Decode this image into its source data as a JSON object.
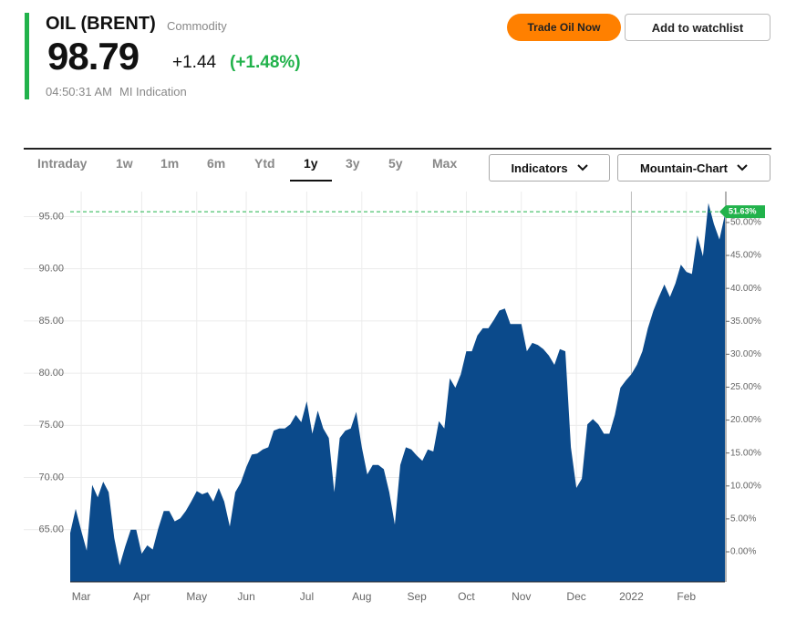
{
  "header": {
    "title": "OIL (BRENT)",
    "kind": "Commodity",
    "price": "98.79",
    "change": "+1.44",
    "change_pct": "(+1.48%)",
    "time": "04:50:31 AM",
    "indication": "MI Indication"
  },
  "buttons": {
    "trade": "Trade Oil Now",
    "watchlist": "Add to watchlist"
  },
  "tabs": [
    "Intraday",
    "1w",
    "1m",
    "6m",
    "Ytd",
    "1y",
    "3y",
    "5y",
    "Max"
  ],
  "dropdowns": [
    "Indicators",
    "Mountain-Chart"
  ],
  "chart_data": {
    "type": "area",
    "color": "#0b4a8b",
    "grid": true,
    "categories": [
      null,
      null,
      "Mar",
      null,
      null,
      null,
      null,
      null,
      null,
      null,
      null,
      null,
      null,
      "Apr",
      null,
      null,
      null,
      null,
      null,
      null,
      null,
      null,
      null,
      "May",
      null,
      null,
      null,
      null,
      null,
      null,
      null,
      null,
      "Jun",
      null,
      null,
      null,
      null,
      null,
      null,
      null,
      null,
      null,
      null,
      "Jul",
      null,
      null,
      null,
      null,
      null,
      null,
      null,
      null,
      null,
      "Aug",
      null,
      null,
      null,
      null,
      null,
      null,
      null,
      null,
      null,
      "Sep",
      null,
      null,
      null,
      null,
      null,
      null,
      null,
      null,
      "Oct",
      null,
      null,
      null,
      null,
      null,
      null,
      null,
      null,
      null,
      "Nov",
      null,
      null,
      null,
      null,
      null,
      null,
      null,
      null,
      null,
      "Dec",
      null,
      null,
      null,
      null,
      null,
      null,
      null,
      null,
      null,
      "2022",
      null,
      null,
      null,
      null,
      null,
      null,
      null,
      null,
      null,
      "Feb",
      null,
      null,
      null,
      null,
      null,
      null,
      null
    ],
    "values": [
      64.7,
      67.0,
      64.9,
      63.0,
      69.3,
      68.1,
      69.6,
      68.6,
      64.2,
      61.6,
      63.4,
      65.0,
      65.0,
      62.7,
      63.5,
      63.1,
      65.1,
      66.8,
      66.8,
      65.8,
      66.1,
      66.8,
      67.7,
      68.7,
      68.4,
      68.6,
      67.7,
      69.0,
      67.7,
      65.3,
      68.6,
      69.5,
      71.0,
      72.2,
      72.3,
      72.7,
      72.9,
      74.5,
      74.7,
      74.7,
      75.1,
      76.0,
      75.3,
      77.3,
      74.2,
      76.4,
      74.7,
      73.8,
      68.6,
      73.8,
      74.5,
      74.7,
      76.3,
      72.9,
      70.3,
      71.2,
      71.2,
      70.8,
      68.6,
      65.5,
      71.2,
      72.9,
      72.7,
      72.1,
      71.6,
      72.7,
      72.5,
      75.4,
      74.7,
      79.5,
      78.6,
      79.9,
      82.1,
      82.1,
      83.6,
      84.3,
      84.3,
      85.1,
      86.0,
      86.2,
      84.7,
      84.7,
      84.7,
      82.1,
      82.9,
      82.7,
      82.3,
      81.7,
      80.8,
      82.3,
      82.1,
      72.9,
      69.0,
      69.9,
      75.1,
      75.6,
      75.1,
      74.2,
      74.2,
      76.0,
      78.6,
      79.3,
      79.9,
      80.8,
      82.1,
      84.3,
      86.0,
      87.3,
      88.5,
      87.3,
      88.6,
      90.4,
      89.7,
      89.5,
      93.2,
      91.2,
      96.3,
      94.3,
      92.8,
      95.2
    ],
    "ylim": [
      60,
      97.4
    ],
    "yticks": [
      {
        "value": 65,
        "label": "65.00"
      },
      {
        "value": 70,
        "label": "70.00"
      },
      {
        "value": 75,
        "label": "75.00"
      },
      {
        "value": 80,
        "label": "80.00"
      },
      {
        "value": 85,
        "label": "85.00"
      },
      {
        "value": 90,
        "label": "90.00"
      },
      {
        "value": 95,
        "label": "95.00"
      }
    ],
    "y2lim": [
      -4.57,
      54.7
    ],
    "y2ticks": [
      {
        "value": 0,
        "label": "0.00%"
      },
      {
        "value": 5,
        "label": "5.00%"
      },
      {
        "value": 10,
        "label": "10.00%"
      },
      {
        "value": 15,
        "label": "15.00%"
      },
      {
        "value": 20,
        "label": "20.00%"
      },
      {
        "value": 25,
        "label": "25.00%"
      },
      {
        "value": 30,
        "label": "30.00%"
      },
      {
        "value": 35,
        "label": "35.00%"
      },
      {
        "value": 40,
        "label": "40.00%"
      },
      {
        "value": 45,
        "label": "45.00%"
      },
      {
        "value": 50,
        "label": "50.00%"
      }
    ],
    "reference": {
      "value": 51.63,
      "label": "51.63%",
      "axis": "y2",
      "color": "#21b24b"
    }
  }
}
